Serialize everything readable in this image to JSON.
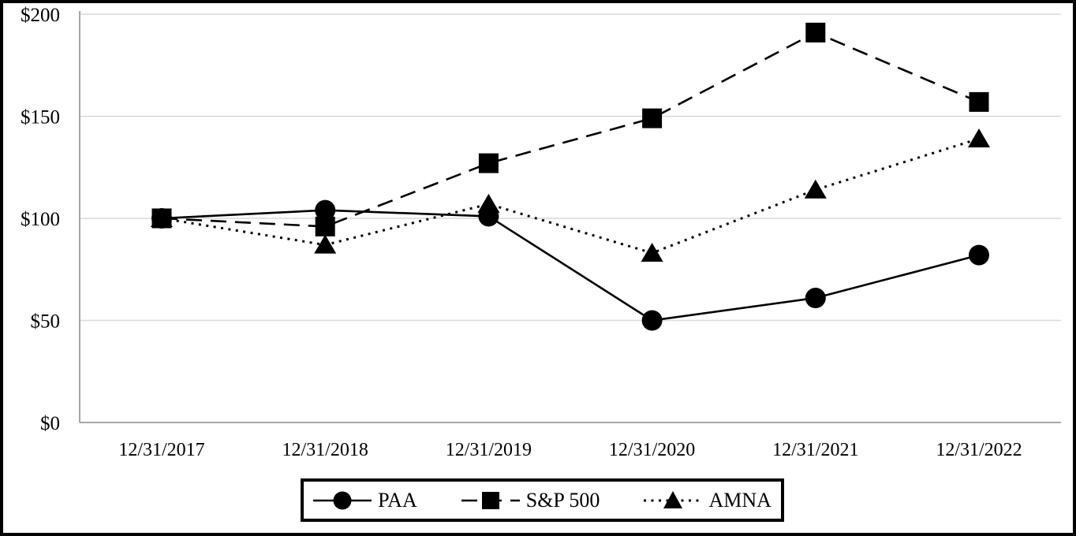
{
  "chart_data": {
    "type": "line",
    "title": "",
    "x_categories": [
      "12/31/2017",
      "12/31/2018",
      "12/31/2019",
      "12/31/2020",
      "12/31/2021",
      "12/31/2022"
    ],
    "y_tick_labels": [
      "$0",
      "$50",
      "$100",
      "$150",
      "$200"
    ],
    "y_tick_values": [
      0,
      50,
      100,
      150,
      200
    ],
    "ylim": [
      0,
      200
    ],
    "grid": true,
    "legend_position": "bottom",
    "series": [
      {
        "name": "PAA",
        "marker": "circle",
        "line": "solid",
        "color": "#000000",
        "values": [
          100,
          104,
          101,
          50,
          61,
          82
        ]
      },
      {
        "name": "S&P 500",
        "marker": "square",
        "line": "dashed",
        "color": "#000000",
        "values": [
          100,
          96,
          127,
          149,
          191,
          157
        ]
      },
      {
        "name": "AMNA",
        "marker": "triangle",
        "line": "dotted",
        "color": "#000000",
        "values": [
          100,
          87,
          107,
          83,
          114,
          139
        ]
      }
    ]
  },
  "colors": {
    "background": "#ffffff",
    "frame_border": "#000000",
    "gridline": "#d9d9d9",
    "axis_line": "#a6a6a6",
    "series": "#000000"
  }
}
